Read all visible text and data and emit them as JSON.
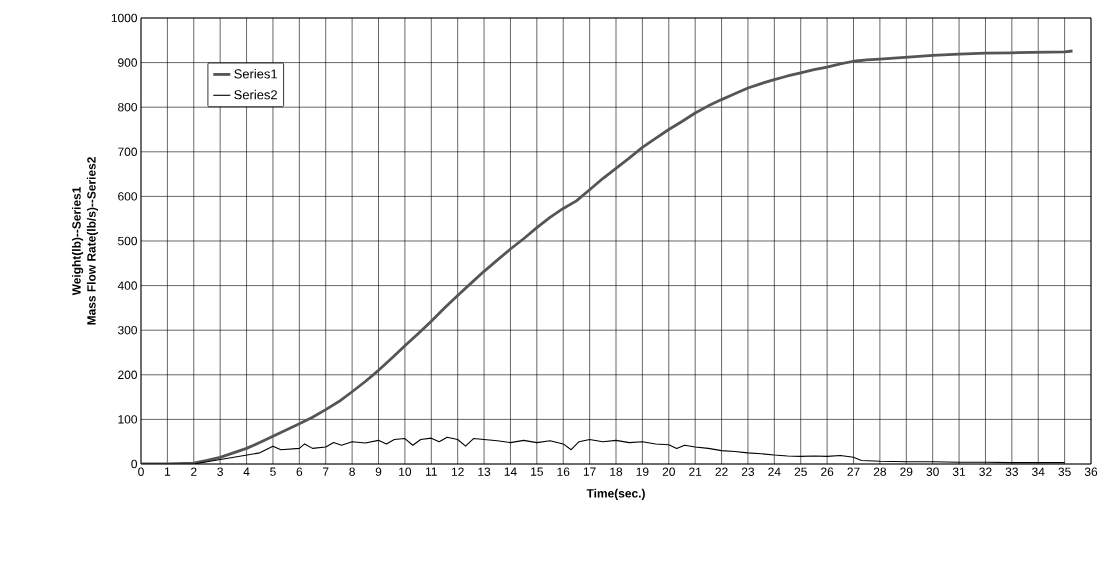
{
  "chart_data": {
    "type": "line",
    "xlabel": "Time(sec.)",
    "ylabel": "Weight(lb)--Series1\nMass Flow Rate(lb/s)--Series2",
    "xlim": [
      0,
      36
    ],
    "xticks": [
      0,
      1,
      2,
      3,
      4,
      5,
      6,
      7,
      8,
      9,
      10,
      11,
      12,
      13,
      14,
      15,
      16,
      17,
      18,
      19,
      20,
      21,
      22,
      23,
      24,
      25,
      26,
      27,
      28,
      29,
      30,
      31,
      32,
      33,
      34,
      35,
      36
    ],
    "ylim": [
      0,
      1000
    ],
    "yticks": [
      0,
      100,
      200,
      300,
      400,
      500,
      600,
      700,
      800,
      900,
      1000
    ],
    "grid": true,
    "legend": "top left",
    "marker": "none",
    "line_style": "solid",
    "series": [
      {
        "name": "Series1",
        "color": "#555555",
        "x": [
          0,
          1,
          2,
          2.5,
          3,
          3.5,
          4,
          4.5,
          5,
          5.5,
          6,
          6.5,
          7,
          7.5,
          8,
          8.5,
          9,
          9.5,
          10,
          10.5,
          11,
          11.5,
          12,
          12.5,
          13,
          13.5,
          14,
          14.5,
          15,
          15.5,
          16,
          16.5,
          17,
          17.5,
          18,
          18.5,
          19,
          19.5,
          20,
          20.5,
          21,
          21.5,
          22,
          22.5,
          23,
          23.5,
          24,
          24.5,
          25,
          25.5,
          26,
          26.5,
          27,
          27.5,
          28,
          29,
          30,
          31,
          32,
          33,
          34,
          35,
          35.3
        ],
        "values": [
          0,
          0,
          2,
          8,
          15,
          25,
          35,
          48,
          62,
          76,
          90,
          105,
          122,
          140,
          162,
          185,
          210,
          237,
          265,
          292,
          320,
          350,
          378,
          405,
          432,
          457,
          482,
          505,
          530,
          553,
          573,
          590,
          615,
          640,
          663,
          686,
          710,
          730,
          750,
          768,
          787,
          803,
          817,
          830,
          843,
          853,
          862,
          870,
          877,
          884,
          890,
          897,
          903,
          906,
          908,
          912,
          916,
          919,
          921,
          922,
          923,
          924,
          926
        ]
      },
      {
        "name": "Series2",
        "color": "#000000",
        "x": [
          0,
          2,
          2.5,
          3,
          3.5,
          4,
          4.5,
          5,
          5.3,
          6,
          6.2,
          6.5,
          7,
          7.3,
          7.6,
          8,
          8.5,
          9,
          9.3,
          9.6,
          10,
          10.3,
          10.6,
          11,
          11.3,
          11.6,
          12,
          12.3,
          12.6,
          13,
          13.5,
          14,
          14.5,
          15,
          15.5,
          16,
          16.3,
          16.6,
          17,
          17.5,
          18,
          18.5,
          19,
          19.5,
          20,
          20.3,
          20.6,
          21,
          21.5,
          22,
          22.5,
          23,
          23.5,
          24,
          24.5,
          25,
          25.5,
          26,
          26.5,
          27,
          27.3,
          28,
          29,
          30,
          31,
          32,
          33,
          34,
          35
        ],
        "values": [
          0,
          0,
          5,
          10,
          15,
          20,
          25,
          40,
          32,
          35,
          45,
          35,
          38,
          48,
          42,
          50,
          47,
          53,
          45,
          55,
          57,
          42,
          55,
          58,
          50,
          60,
          55,
          40,
          57,
          55,
          52,
          48,
          53,
          48,
          52,
          45,
          32,
          50,
          55,
          50,
          53,
          48,
          50,
          45,
          43,
          35,
          42,
          38,
          35,
          30,
          28,
          25,
          23,
          20,
          18,
          17,
          18,
          17,
          19,
          15,
          8,
          6,
          5,
          5,
          4,
          4,
          3,
          3,
          3
        ]
      }
    ]
  }
}
